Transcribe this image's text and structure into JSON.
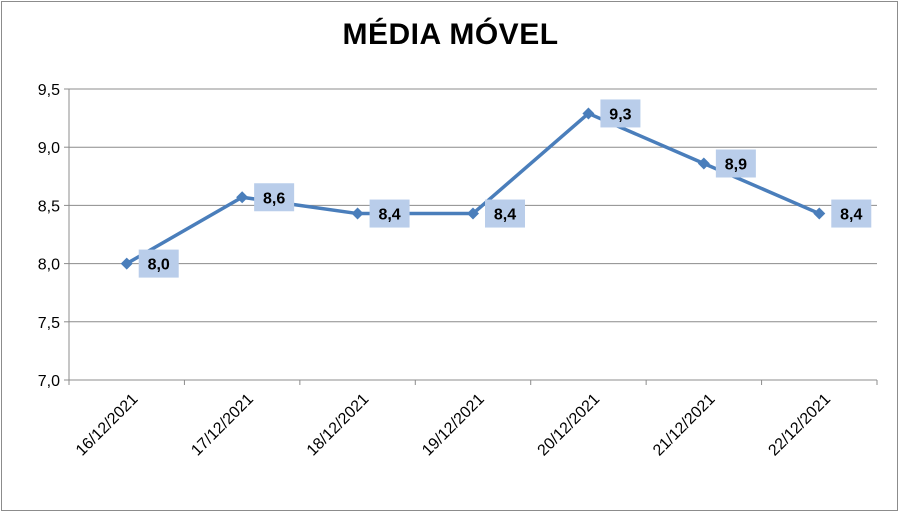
{
  "chart_data": {
    "type": "line",
    "title": "MÉDIA MÓVEL",
    "categories": [
      "16/12/2021",
      "17/12/2021",
      "18/12/2021",
      "19/12/2021",
      "20/12/2021",
      "21/12/2021",
      "22/12/2021"
    ],
    "series": [
      {
        "values": [
          8.0,
          8.57,
          8.43,
          8.43,
          9.29,
          8.86,
          8.43
        ]
      }
    ],
    "data_labels": [
      "8,0",
      "8,6",
      "8,4",
      "8,4",
      "9,3",
      "8,9",
      "8,4"
    ],
    "y_ticks": [
      "7,0",
      "7,5",
      "8,0",
      "8,5",
      "9,0",
      "9,5"
    ],
    "ylim": [
      7.0,
      9.5
    ],
    "grid": true,
    "legend": "none",
    "colors": {
      "line": "#4a7ebb",
      "label_bg": "#b9cdea",
      "grid": "#8c8c8c",
      "axis": "#8c8c8c"
    }
  }
}
